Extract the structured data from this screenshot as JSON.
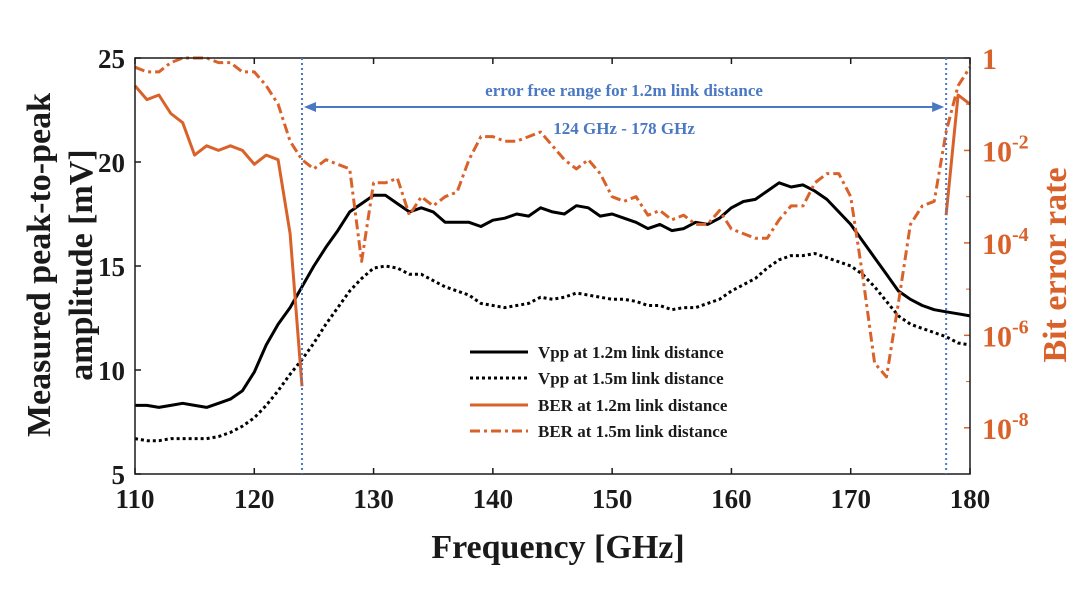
{
  "chart_data": {
    "type": "line",
    "title": "",
    "xlabel": "Frequency [GHz]",
    "ylabel_left": [
      "Measured peak-to-peak",
      "amplitude [mV]"
    ],
    "ylabel_right": "Bit error rate",
    "xlim": [
      110,
      180
    ],
    "ylim_left": [
      5,
      25
    ],
    "ylim_right_log10": [
      -9,
      0
    ],
    "x_ticks": [
      "110",
      "120",
      "130",
      "140",
      "150",
      "160",
      "170",
      "180"
    ],
    "y_ticks_left": [
      "5",
      "10",
      "15",
      "20",
      "25"
    ],
    "y_ticks_right": [
      {
        "base": "1",
        "exp": ""
      },
      {
        "base": "10",
        "exp": "-2"
      },
      {
        "base": "10",
        "exp": "-4"
      },
      {
        "base": "10",
        "exp": "-6"
      },
      {
        "base": "10",
        "exp": "-8"
      }
    ],
    "annotation": {
      "line1": "error free range for 1.2m link distance",
      "line2": "124 GHz - 178 GHz",
      "x_start": 124,
      "x_end": 178
    },
    "legend": {
      "position": "center",
      "entries": [
        "Vpp at 1.2m link distance",
        "Vpp at 1.5m link distance",
        "BER at 1.2m link distance",
        "BER at 1.5m link distance"
      ]
    },
    "colors": {
      "vpp": "#000000",
      "ber": "#d9622b",
      "annotation": "#4a78c2"
    },
    "series": [
      {
        "name": "Vpp at 1.2m link distance",
        "axis": "left",
        "style": "solid",
        "x": [
          110,
          111,
          112,
          113,
          114,
          115,
          116,
          117,
          118,
          119,
          120,
          121,
          122,
          123,
          124,
          125,
          126,
          127,
          128,
          129,
          130,
          131,
          132,
          133,
          134,
          135,
          136,
          137,
          138,
          139,
          140,
          141,
          142,
          143,
          144,
          145,
          146,
          147,
          148,
          149,
          150,
          151,
          152,
          153,
          154,
          155,
          156,
          157,
          158,
          159,
          160,
          161,
          162,
          163,
          164,
          165,
          166,
          167,
          168,
          169,
          170,
          171,
          172,
          173,
          174,
          175,
          176,
          177,
          178,
          179,
          180
        ],
        "y": [
          8.3,
          8.3,
          8.2,
          8.3,
          8.4,
          8.3,
          8.2,
          8.4,
          8.6,
          9.0,
          9.9,
          11.2,
          12.2,
          13.0,
          14.0,
          15.0,
          15.9,
          16.7,
          17.6,
          18.0,
          18.4,
          18.4,
          18.0,
          17.6,
          17.8,
          17.6,
          17.1,
          17.1,
          17.1,
          16.9,
          17.2,
          17.3,
          17.5,
          17.4,
          17.8,
          17.6,
          17.5,
          17.9,
          17.8,
          17.4,
          17.5,
          17.3,
          17.1,
          16.8,
          17.0,
          16.7,
          16.8,
          17.1,
          17.0,
          17.3,
          17.8,
          18.1,
          18.2,
          18.6,
          19.0,
          18.8,
          18.9,
          18.6,
          18.2,
          17.6,
          17.0,
          16.2,
          15.4,
          14.6,
          13.8,
          13.4,
          13.1,
          12.9,
          12.8,
          12.7,
          12.6
        ]
      },
      {
        "name": "Vpp at 1.5m link distance",
        "axis": "left",
        "style": "dotted",
        "x": [
          110,
          111,
          112,
          113,
          114,
          115,
          116,
          117,
          118,
          119,
          120,
          121,
          122,
          123,
          124,
          125,
          126,
          127,
          128,
          129,
          130,
          131,
          132,
          133,
          134,
          135,
          136,
          137,
          138,
          139,
          140,
          141,
          142,
          143,
          144,
          145,
          146,
          147,
          148,
          149,
          150,
          151,
          152,
          153,
          154,
          155,
          156,
          157,
          158,
          159,
          160,
          161,
          162,
          163,
          164,
          165,
          166,
          167,
          168,
          169,
          170,
          171,
          172,
          173,
          174,
          175,
          176,
          177,
          178,
          179,
          180
        ],
        "y": [
          6.7,
          6.6,
          6.6,
          6.7,
          6.7,
          6.7,
          6.7,
          6.8,
          7.0,
          7.3,
          7.7,
          8.3,
          9.0,
          9.8,
          10.5,
          11.3,
          12.2,
          13.0,
          13.8,
          14.4,
          14.9,
          15.0,
          14.9,
          14.6,
          14.6,
          14.3,
          14.0,
          13.8,
          13.6,
          13.2,
          13.1,
          13.0,
          13.1,
          13.2,
          13.5,
          13.4,
          13.5,
          13.7,
          13.6,
          13.5,
          13.4,
          13.4,
          13.3,
          13.1,
          13.1,
          12.9,
          13.0,
          13.0,
          13.2,
          13.4,
          13.8,
          14.1,
          14.4,
          14.9,
          15.3,
          15.5,
          15.5,
          15.6,
          15.4,
          15.2,
          15.0,
          14.6,
          14.0,
          13.3,
          12.6,
          12.2,
          12.0,
          11.8,
          11.6,
          11.3,
          11.2
        ]
      },
      {
        "name": "BER at 1.2m link distance",
        "axis": "right",
        "style": "solid",
        "x": [
          110,
          111,
          112,
          113,
          114,
          115,
          116,
          117,
          118,
          119,
          120,
          121,
          122,
          123,
          124
        ],
        "log10_y": [
          -0.6,
          -0.9,
          -0.8,
          -1.2,
          -1.4,
          -2.1,
          -1.9,
          -2.0,
          -1.9,
          -2.0,
          -2.3,
          -2.1,
          -2.2,
          -3.8,
          -7.1
        ]
      },
      {
        "name": "BER at 1.2m link distance (upper band edge)",
        "axis": "right",
        "style": "solid",
        "x": [
          178,
          179,
          180
        ],
        "log10_y": [
          -3.4,
          -0.8,
          -1.0
        ]
      },
      {
        "name": "BER at 1.5m link distance",
        "axis": "right",
        "style": "dashdot",
        "x": [
          110,
          111,
          112,
          113,
          114,
          115,
          116,
          117,
          118,
          119,
          120,
          121,
          122,
          123,
          124,
          125,
          126,
          127,
          128,
          129,
          130,
          131,
          132,
          133,
          134,
          135,
          136,
          137,
          138,
          139,
          140,
          141,
          142,
          143,
          144,
          145,
          146,
          147,
          148,
          149,
          150,
          151,
          152,
          153,
          154,
          155,
          156,
          157,
          158,
          159,
          160,
          161,
          162,
          163,
          164,
          165,
          166,
          167,
          168,
          169,
          170,
          171,
          172,
          173,
          174,
          175,
          176,
          177,
          178,
          179,
          180
        ],
        "log10_y": [
          -0.2,
          -0.3,
          -0.3,
          -0.1,
          0.0,
          0.0,
          0.0,
          -0.1,
          -0.1,
          -0.3,
          -0.3,
          -0.6,
          -1.0,
          -1.8,
          -2.2,
          -2.4,
          -2.2,
          -2.3,
          -2.4,
          -4.4,
          -2.7,
          -2.7,
          -2.6,
          -3.4,
          -3.0,
          -3.2,
          -3.0,
          -2.9,
          -2.2,
          -1.7,
          -1.7,
          -1.8,
          -1.8,
          -1.7,
          -1.6,
          -1.9,
          -2.2,
          -2.4,
          -2.2,
          -2.5,
          -3.0,
          -3.1,
          -3.0,
          -3.4,
          -3.3,
          -3.5,
          -3.4,
          -3.6,
          -3.6,
          -3.3,
          -3.7,
          -3.8,
          -3.9,
          -3.9,
          -3.5,
          -3.2,
          -3.2,
          -2.7,
          -2.5,
          -2.5,
          -3.0,
          -4.7,
          -6.6,
          -6.9,
          -5.3,
          -3.6,
          -3.2,
          -3.1,
          -1.6,
          -0.6,
          -0.2
        ]
      }
    ]
  }
}
